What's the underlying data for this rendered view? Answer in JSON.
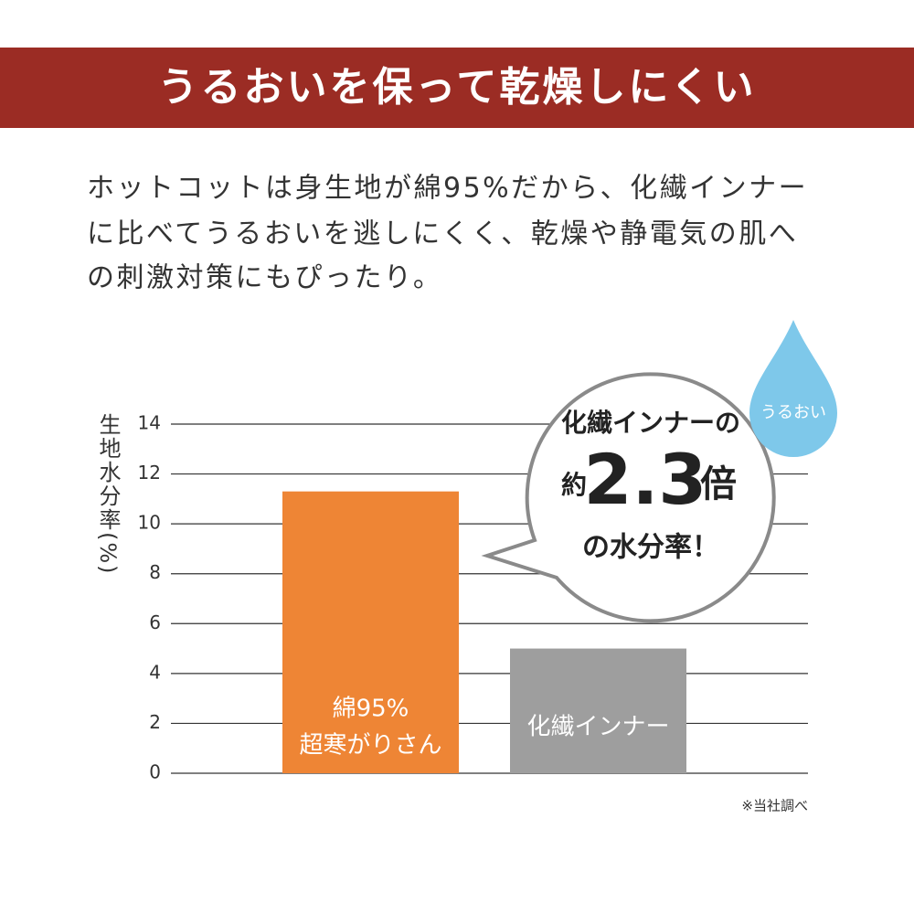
{
  "header": {
    "title": "うるおいを保って乾燥しにくい"
  },
  "description": [
    "ホットコットは身生地が綿95%だから、化繊インナー",
    "に比べてうるおいを逃しにくく、乾燥や静電気の肌へ",
    "の刺激対策にもぴったり。"
  ],
  "chart_data": {
    "type": "bar",
    "y_label": "生地水分率(%)",
    "categories": [
      [
        "綿95%",
        "超寒がりさん"
      ],
      [
        "化繊インナー"
      ]
    ],
    "values": [
      11.3,
      5.0
    ],
    "colors": [
      "#ee8535",
      "#9e9e9e"
    ],
    "ylim": [
      0,
      14
    ],
    "yticks": [
      0,
      2,
      4,
      6,
      8,
      10,
      12,
      14
    ],
    "grid": true
  },
  "callout": {
    "line1": "化繊インナーの",
    "prefix": "約",
    "number": "2.3",
    "suffix": "倍",
    "line3": "の水分率！"
  },
  "badge": "うるおい",
  "note": "※当社調べ"
}
